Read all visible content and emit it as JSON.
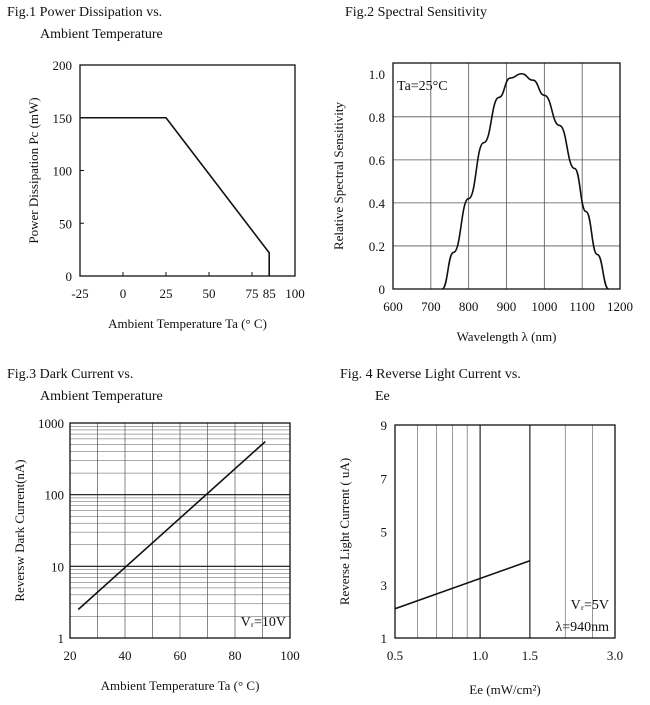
{
  "colors": {
    "line": "#111111",
    "grid": "#555555",
    "background": "#ffffff"
  },
  "chart_data": [
    {
      "type": "line",
      "title": "Fig.1 Power Dissipation vs.",
      "subtitle": "Ambient Temperature",
      "xlabel": "Ambient Temperature Ta (° C)",
      "ylabel": "Power Dissipation Pc (mW)",
      "xlim": [
        -25,
        100
      ],
      "ylim": [
        0,
        200
      ],
      "xticks": [
        -25,
        0,
        25,
        50,
        75,
        85,
        100
      ],
      "yticks": [
        0,
        50,
        100,
        150,
        200
      ],
      "grid": false,
      "series": [
        {
          "x": [
            -25,
            25,
            85,
            85
          ],
          "y": [
            150,
            150,
            22,
            0
          ]
        }
      ]
    },
    {
      "type": "line",
      "title": "Fig.2 Spectral Sensitivity",
      "xlabel": "Wavelength λ (nm)",
      "ylabel": "Relative Spectral Sensitivity",
      "annotation": "Ta=25°C",
      "xlim": [
        600,
        1200
      ],
      "ylim": [
        0,
        1.05
      ],
      "xticks": [
        600,
        700,
        800,
        900,
        1000,
        1100,
        1200
      ],
      "yticks": [
        0,
        0.2,
        0.4,
        0.6,
        0.8,
        1.0
      ],
      "grid": true,
      "series": [
        {
          "x": [
            730,
            760,
            800,
            840,
            880,
            910,
            940,
            970,
            1000,
            1040,
            1080,
            1110,
            1140,
            1170
          ],
          "y": [
            0.0,
            0.17,
            0.42,
            0.68,
            0.89,
            0.98,
            1.0,
            0.97,
            0.9,
            0.76,
            0.56,
            0.36,
            0.16,
            0.0
          ]
        }
      ]
    },
    {
      "type": "line",
      "title": "Fig.3 Dark Current vs.",
      "subtitle": "Ambient Temperature",
      "xlabel": "Ambient Temperature Ta (° C)",
      "ylabel": "Reversw Dark Current(nA)",
      "annotation": "Vᵣ=10V",
      "xscale": "linear",
      "yscale": "log",
      "xlim": [
        20,
        100
      ],
      "ylim": [
        1,
        1000
      ],
      "xticks": [
        20,
        40,
        60,
        80,
        100
      ],
      "yticks": [
        1,
        10,
        100,
        1000
      ],
      "grid": true,
      "series": [
        {
          "x": [
            23,
            91
          ],
          "y": [
            2.5,
            550
          ]
        }
      ]
    },
    {
      "type": "line",
      "title": "Fig. 4 Reverse Light Current vs.",
      "subtitle": "Ee",
      "xlabel": "Ee (mW/cm²)",
      "ylabel": "Reverse Light Current ( uA)",
      "annotations": [
        "Vᵣ=5V",
        "λ=940nm"
      ],
      "xscale": "log",
      "xlim": [
        0.5,
        3.0
      ],
      "ylim": [
        1,
        9
      ],
      "xticks": [
        "0.5",
        "1.0",
        "1.5",
        "3.0"
      ],
      "yticks": [
        1,
        3,
        5,
        7,
        9
      ],
      "grid": true,
      "series": [
        {
          "x": [
            0.5,
            1.5
          ],
          "y": [
            2.1,
            3.9
          ]
        }
      ]
    }
  ]
}
